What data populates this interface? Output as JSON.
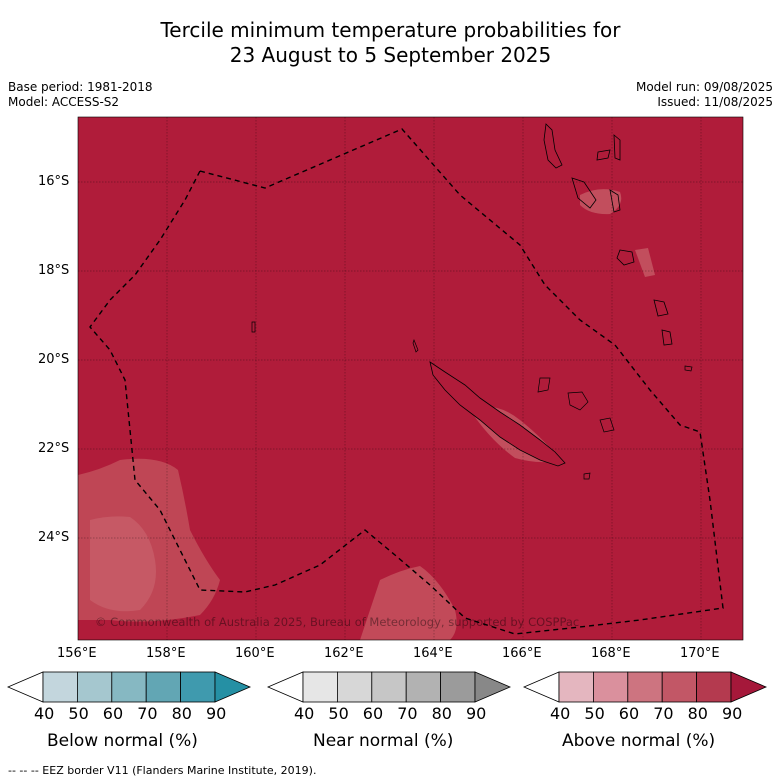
{
  "title_line1": "Tercile minimum temperature probabilities for",
  "title_line2": "23 August to 5 September 2025",
  "base_period": "Base period: 1981-2018",
  "model": "Model: ACCESS-S2",
  "model_run": "Model run: 09/08/2025",
  "issued": "Issued: 11/08/2025",
  "copyright": "© Commonwealth of Australia 2025, Bureau of Meteorology, supported by COSPPac",
  "lat_labels": [
    "16°S",
    "18°S",
    "20°S",
    "22°S",
    "24°S"
  ],
  "lon_labels": [
    "156°E",
    "158°E",
    "160°E",
    "162°E",
    "164°E",
    "166°E",
    "168°E",
    "170°E"
  ],
  "colorbar_ticks": [
    "40",
    "50",
    "60",
    "70",
    "80",
    "90"
  ],
  "colorbars": [
    {
      "label": "Below normal (%)",
      "colors": [
        "#ffffff",
        "#c3d6dd",
        "#a5c7cf",
        "#86b8c2",
        "#62a6b4",
        "#3f9aae",
        "#2590a4"
      ]
    },
    {
      "label": "Near normal (%)",
      "colors": [
        "#ffffff",
        "#e6e6e6",
        "#d7d7d7",
        "#c6c6c6",
        "#b2b2b2",
        "#9b9b9b",
        "#888888"
      ]
    },
    {
      "label": "Above normal (%)",
      "colors": [
        "#ffffff",
        "#e4b6bf",
        "#da909d",
        "#cd7480",
        "#c25766",
        "#b43a4f",
        "#a5183a"
      ]
    }
  ],
  "footer": "--  --  -- EEZ border V11 (Flanders Marine Institute, 2019).",
  "map_fill": "#b01c3a"
}
